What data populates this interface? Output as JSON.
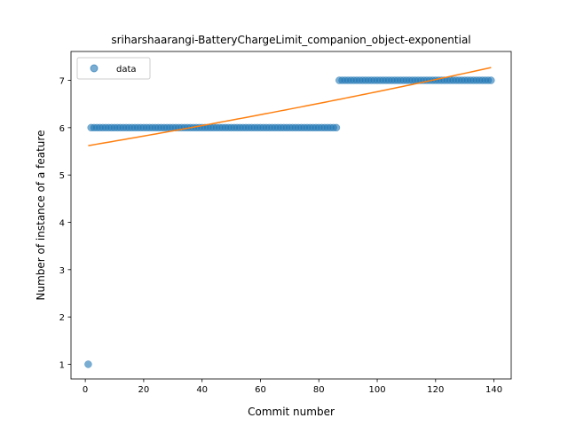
{
  "chart_data": {
    "type": "scatter",
    "title": "sriharshaarangi-BatteryChargeLimit_companion_object-exponential",
    "xlabel": "Commit number",
    "ylabel": "Number of instance of a feature",
    "xlim": [
      -4.9,
      145.9
    ],
    "ylim": [
      0.69,
      7.61
    ],
    "xticks": [
      0,
      20,
      40,
      60,
      80,
      100,
      120,
      140
    ],
    "yticks": [
      1,
      2,
      3,
      4,
      5,
      6,
      7
    ],
    "grid": false,
    "legend": {
      "position": "top-left",
      "entries": [
        "data"
      ]
    },
    "series": [
      {
        "name": "data",
        "kind": "points",
        "color": "#1f77b4",
        "segments": [
          {
            "x_start": 1,
            "x_end": 1,
            "y": 1
          },
          {
            "x_start": 2,
            "x_end": 86,
            "y": 6
          },
          {
            "x_start": 87,
            "x_end": 139,
            "y": 7
          }
        ]
      },
      {
        "kind": "fit-line",
        "model": "exponential",
        "color": "#ff7f0e",
        "x_range": [
          1,
          139
        ],
        "y_start": 5.62,
        "y_end": 7.27
      }
    ]
  }
}
